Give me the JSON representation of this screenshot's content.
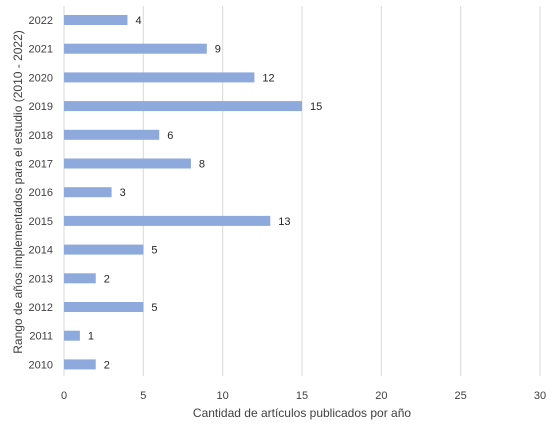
{
  "chart_data": {
    "type": "bar",
    "orientation": "horizontal",
    "categories": [
      "2022",
      "2021",
      "2020",
      "2019",
      "2018",
      "2017",
      "2016",
      "2015",
      "2014",
      "2013",
      "2012",
      "2011",
      "2010"
    ],
    "values": [
      4,
      9,
      12,
      15,
      6,
      8,
      3,
      13,
      5,
      2,
      5,
      1,
      2
    ],
    "xlabel": "Cantidad de artículos publicados por año",
    "ylabel": "Rango de años implementados para el estudio (2010 - 2022)",
    "xlim": [
      0,
      30
    ],
    "xticks": [
      0,
      5,
      10,
      15,
      20,
      25,
      30
    ],
    "grid": "vertical",
    "legend": "none",
    "bar_color": "#8EA9DB",
    "grid_color": "#D9D9D9"
  }
}
